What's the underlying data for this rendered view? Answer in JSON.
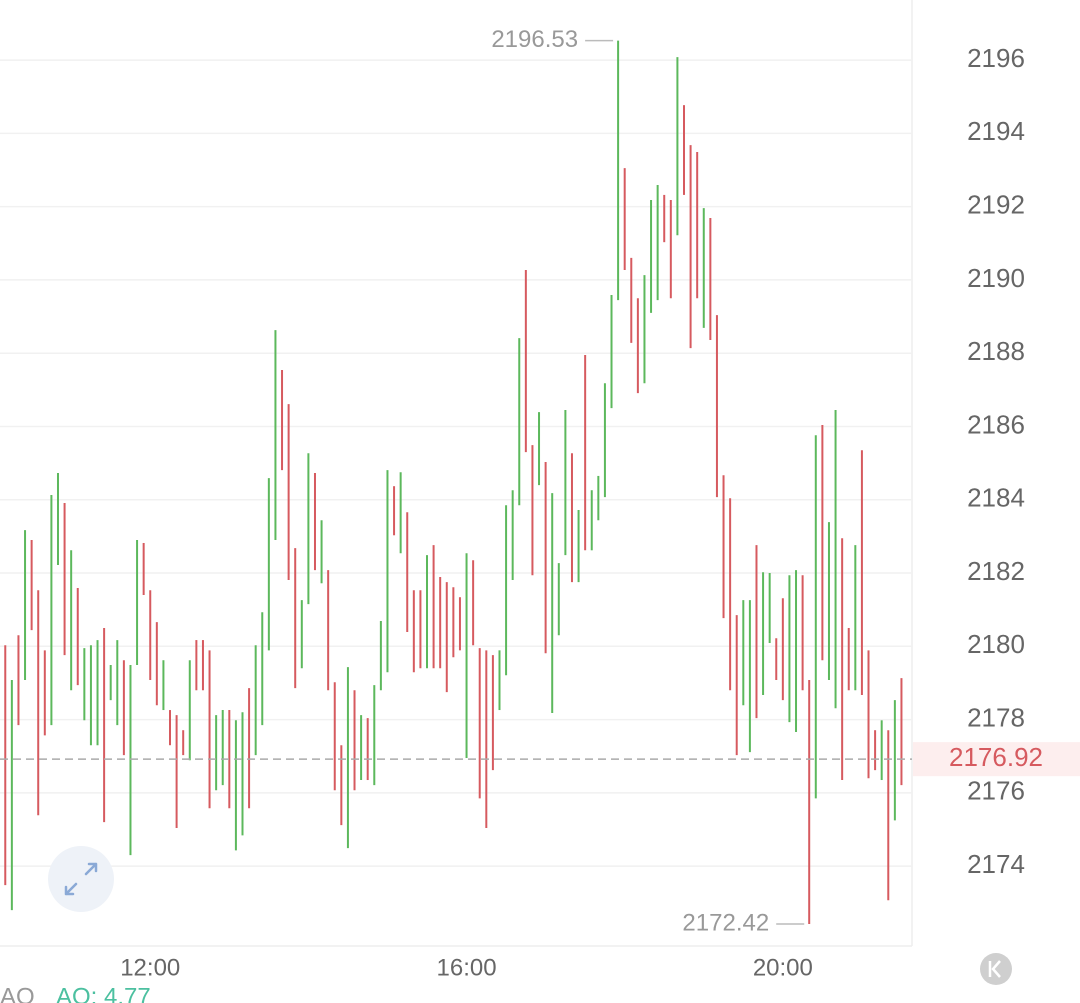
{
  "chart_data": {
    "type": "range_bar",
    "x": [
      610,
      615,
      620,
      625,
      630,
      635,
      640,
      645,
      650,
      655,
      660,
      665,
      670,
      675,
      680,
      685,
      690,
      695,
      700,
      705,
      710,
      715,
      720,
      725,
      730,
      735,
      740,
      745,
      750,
      755,
      760,
      765,
      770,
      775,
      780,
      785,
      790,
      795,
      800,
      805,
      810,
      815,
      820,
      825,
      830,
      835,
      840,
      845,
      850,
      855,
      860,
      865,
      870,
      875,
      880,
      885,
      890,
      895,
      900,
      905,
      910,
      915,
      920,
      925,
      930,
      935,
      940,
      945,
      950,
      955,
      960,
      965,
      970,
      975,
      980,
      985,
      990,
      995,
      1000,
      1005,
      1010,
      1015,
      1020,
      1025,
      1030,
      1035,
      1040,
      1045,
      1050,
      1055,
      1060,
      1065,
      1070,
      1075,
      1080,
      1085,
      1090,
      1095,
      1100,
      1105,
      1110,
      1115,
      1120,
      1125,
      1130,
      1135,
      1140,
      1145,
      1150,
      1155,
      1160,
      1165,
      1170,
      1175,
      1180,
      1185,
      1190,
      1195,
      1200,
      1205,
      1210,
      1215,
      1220,
      1225,
      1230,
      1235,
      1240,
      1245,
      1250,
      1255,
      1260,
      1265,
      1270,
      1275,
      1280,
      1285,
      1290
    ],
    "high": [
      2180.03,
      2179.08,
      2180.3,
      2183.17,
      2182.9,
      2181.53,
      2179.89,
      2184.13,
      2184.73,
      2183.91,
      2182.62,
      2181.59,
      2179.95,
      2180.03,
      2180.17,
      2180.5,
      2179.49,
      2180.17,
      2179.62,
      2179.49,
      2182.9,
      2182.82,
      2181.53,
      2180.66,
      2179.62,
      2178.26,
      2178.12,
      2177.71,
      2179.62,
      2180.17,
      2180.17,
      2179.89,
      2178.12,
      2178.26,
      2178.26,
      2177.98,
      2178.2,
      2178.86,
      2180.03,
      2180.93,
      2184.59,
      2188.63,
      2187.54,
      2186.61,
      2182.68,
      2181.26,
      2185.27,
      2184.73,
      2183.44,
      2182.08,
      2179.02,
      2177.3,
      2179.43,
      2178.8,
      2178.12,
      2178.04,
      2178.94,
      2180.69,
      2184.81,
      2184.37,
      2184.75,
      2183.66,
      2181.53,
      2181.53,
      2182.49,
      2182.76,
      2181.89,
      2181.75,
      2181.61,
      2181.34,
      2182.54,
      2182.35,
      2179.95,
      2179.89,
      2179.76,
      2179.89,
      2183.85,
      2184.26,
      2188.41,
      2190.27,
      2185.49,
      2186.39,
      2185.03,
      2184.18,
      2182.27,
      2186.45,
      2185.27,
      2183.72,
      2187.95,
      2184.26,
      2184.65,
      2187.18,
      2189.59,
      2196.53,
      2193.05,
      2190.6,
      2189.5,
      2190.13,
      2192.18,
      2192.59,
      2192.32,
      2192.18,
      2196.08,
      2194.77,
      2193.68,
      2193.49,
      2191.96,
      2191.69,
      2189.04,
      2184.67,
      2184.04,
      2180.85,
      2181.26,
      2181.26,
      2182.76,
      2182.02,
      2182.0,
      2180.22,
      2181.31,
      2181.94,
      2182.08,
      2181.94,
      2179.08,
      2185.76,
      2186.04,
      2183.39,
      2186.45,
      2182.95,
      2180.5,
      2182.76,
      2185.35,
      2179.89,
      2177.71,
      2177.98,
      2177.71,
      2178.53,
      2179.13
    ],
    "low": [
      2173.48,
      2172.8,
      2177.85,
      2179.08,
      2180.44,
      2175.39,
      2177.57,
      2177.85,
      2182.22,
      2179.76,
      2178.8,
      2178.94,
      2177.98,
      2177.3,
      2177.3,
      2175.2,
      2178.53,
      2177.85,
      2177.03,
      2174.3,
      2179.49,
      2181.4,
      2179.08,
      2178.39,
      2178.26,
      2177.3,
      2175.04,
      2177.03,
      2176.89,
      2178.8,
      2178.8,
      2175.58,
      2176.07,
      2176.21,
      2175.58,
      2174.43,
      2174.84,
      2175.58,
      2177.03,
      2177.85,
      2179.89,
      2182.9,
      2184.81,
      2181.81,
      2178.86,
      2179.4,
      2181.15,
      2182.08,
      2181.72,
      2178.8,
      2176.07,
      2175.12,
      2174.49,
      2176.07,
      2176.35,
      2176.35,
      2176.21,
      2178.8,
      2179.29,
      2183.03,
      2182.54,
      2180.39,
      2179.29,
      2179.4,
      2179.4,
      2179.4,
      2179.4,
      2178.75,
      2179.7,
      2179.89,
      2176.95,
      2180.03,
      2175.85,
      2175.04,
      2176.62,
      2178.26,
      2179.21,
      2181.81,
      2183.85,
      2185.3,
      2181.94,
      2184.4,
      2179.81,
      2178.18,
      2180.3,
      2182.49,
      2181.75,
      2181.75,
      2182.62,
      2182.62,
      2183.44,
      2184.07,
      2186.5,
      2189.45,
      2190.27,
      2188.28,
      2186.91,
      2187.18,
      2189.1,
      2189.45,
      2191.03,
      2189.5,
      2191.22,
      2192.32,
      2188.14,
      2189.5,
      2188.69,
      2188.36,
      2184.07,
      2180.77,
      2178.8,
      2177.03,
      2178.39,
      2177.11,
      2178.04,
      2178.67,
      2180.09,
      2179.08,
      2178.53,
      2177.93,
      2177.66,
      2178.8,
      2172.42,
      2175.85,
      2179.62,
      2179.08,
      2178.31,
      2176.35,
      2178.8,
      2178.8,
      2178.67,
      2176.4,
      2176.62,
      2176.35,
      2173.07,
      2175.25,
      2176.21
    ],
    "up": [
      false,
      true,
      false,
      true,
      false,
      false,
      false,
      true,
      true,
      false,
      true,
      false,
      true,
      true,
      true,
      false,
      true,
      true,
      false,
      true,
      true,
      false,
      false,
      false,
      true,
      false,
      false,
      false,
      true,
      false,
      false,
      false,
      true,
      true,
      false,
      true,
      true,
      false,
      true,
      true,
      true,
      true,
      false,
      false,
      false,
      true,
      true,
      false,
      true,
      false,
      false,
      false,
      true,
      false,
      true,
      false,
      true,
      true,
      true,
      false,
      true,
      false,
      false,
      false,
      true,
      false,
      false,
      false,
      false,
      false,
      true,
      false,
      false,
      false,
      false,
      true,
      true,
      true,
      true,
      false,
      false,
      true,
      false,
      true,
      true,
      true,
      false,
      true,
      false,
      true,
      true,
      true,
      true,
      true,
      false,
      false,
      false,
      true,
      true,
      true,
      false,
      false,
      true,
      false,
      false,
      false,
      true,
      false,
      false,
      false,
      false,
      false,
      true,
      true,
      false,
      true,
      true,
      false,
      false,
      true,
      true,
      false,
      false,
      true,
      false,
      true,
      true,
      false,
      false,
      true,
      false,
      false,
      false,
      true,
      false,
      true,
      false
    ],
    "up_color": "#5cb85c",
    "down_color": "#d65a5f",
    "xlim": [
      606,
      1298
    ],
    "xticks": [
      {
        "value": 720,
        "label": "12:00"
      },
      {
        "value": 960,
        "label": "16:00"
      },
      {
        "value": 1200,
        "label": "20:00"
      }
    ],
    "ylim": [
      2171.82,
      2197.64
    ],
    "yticks": [
      2174,
      2176,
      2178,
      2180,
      2182,
      2184,
      2186,
      2188,
      2190,
      2192,
      2194,
      2196
    ],
    "grid": true,
    "last_price": 2176.92,
    "max_index": 93,
    "min_index": 122,
    "indicator": {
      "name": "AO",
      "label": "AO: 4.77"
    }
  }
}
